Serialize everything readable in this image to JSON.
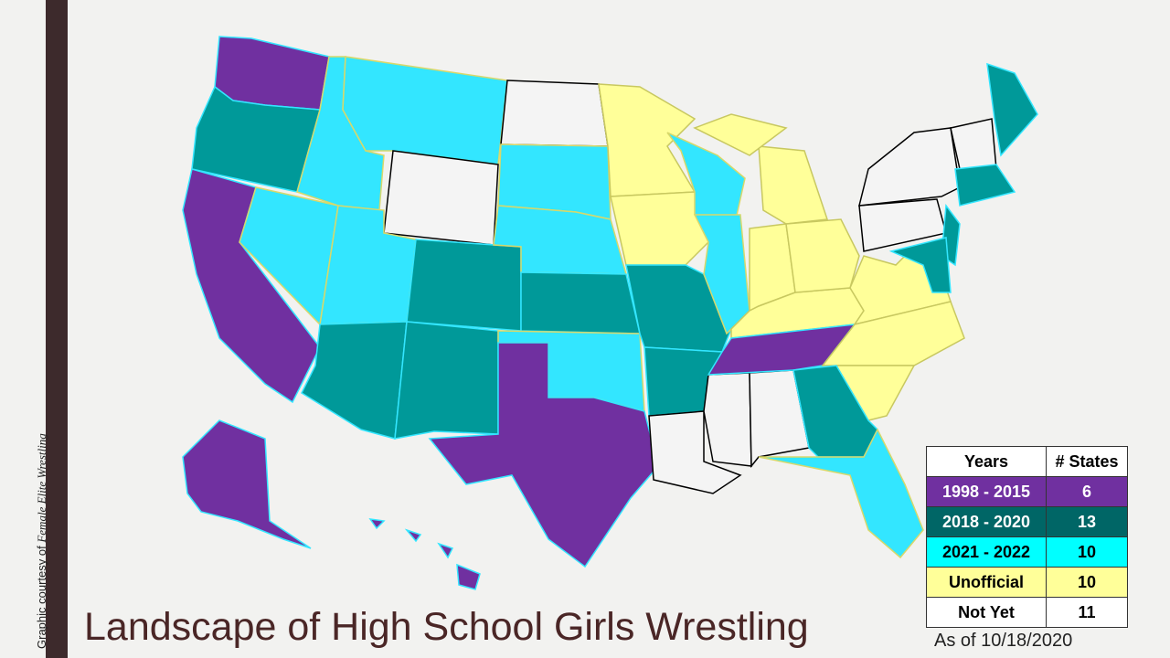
{
  "title": "Landscape of High School Girls Wrestling",
  "credit_prefix": "Graphic courtesy of",
  "credit_name": "Female Elite Wrestling",
  "as_of": "As of 10/18/2020",
  "legend": {
    "header": [
      "Years",
      "# States"
    ],
    "rows": [
      [
        "1998 - 2015",
        "6"
      ],
      [
        "2018 - 2020",
        "13"
      ],
      [
        "2021 - 2022",
        "10"
      ],
      [
        "Unofficial",
        "10"
      ],
      [
        "Not Yet",
        "11"
      ]
    ]
  }
}
